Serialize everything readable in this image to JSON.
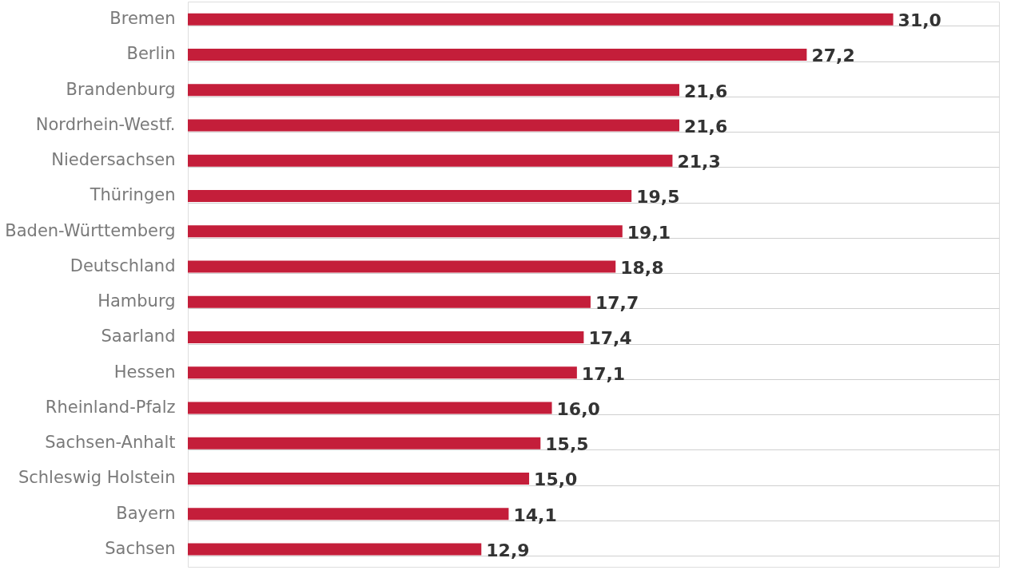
{
  "chart_data": {
    "type": "bar",
    "orientation": "horizontal",
    "categories": [
      "Bremen",
      "Berlin",
      "Brandenburg",
      "Nordrhein-Westf.",
      "Niedersachsen",
      "Thüringen",
      "Baden-Württemberg",
      "Deutschland",
      "Hamburg",
      "Saarland",
      "Hessen",
      "Rheinland-Pfalz",
      "Sachsen-Anhalt",
      "Schleswig Holstein",
      "Bayern",
      "Sachsen"
    ],
    "values": [
      31.0,
      27.2,
      21.6,
      21.6,
      21.3,
      19.5,
      19.1,
      18.8,
      17.7,
      17.4,
      17.1,
      16.0,
      15.5,
      15.0,
      14.1,
      12.9
    ],
    "value_labels": [
      "31,0",
      "27,2",
      "21,6",
      "21,6",
      "21,3",
      "19,5",
      "19,1",
      "18,8",
      "17,7",
      "17,4",
      "17,1",
      "16,0",
      "15,5",
      "15,0",
      "14,1",
      "12,9"
    ],
    "color": "#c41e3a",
    "grid": "y"
  }
}
